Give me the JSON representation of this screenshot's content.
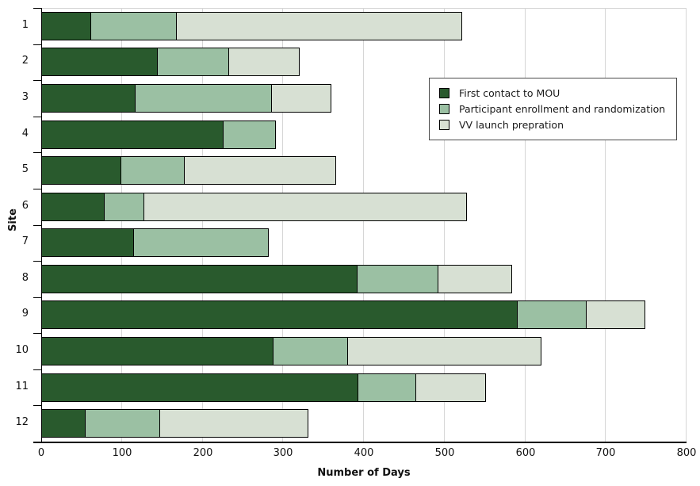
{
  "chart_data": {
    "type": "bar",
    "orientation": "horizontal",
    "stacked": true,
    "xlabel": "Number of Days",
    "ylabel": "Site",
    "xlim": [
      0,
      800
    ],
    "xticks": [
      0,
      100,
      200,
      300,
      400,
      500,
      600,
      700,
      800
    ],
    "grid": "vertical",
    "legend_position": "upper-right-inside",
    "categories": [
      "1",
      "2",
      "3",
      "4",
      "5",
      "6",
      "7",
      "8",
      "9",
      "10",
      "11",
      "12"
    ],
    "series": [
      {
        "name": "First contact to MOU",
        "color": "#295a2d",
        "values": [
          62,
          144,
          117,
          226,
          99,
          79,
          115,
          392,
          591,
          288,
          393,
          55
        ]
      },
      {
        "name": "Participant enrollment and randomization",
        "color": "#9bc0a3",
        "values": [
          106,
          89,
          169,
          65,
          79,
          49,
          167,
          100,
          85,
          92,
          72,
          92
        ]
      },
      {
        "name": "VV launch prepration",
        "color": "#d7e0d3",
        "values": [
          354,
          87,
          74,
          0,
          188,
          400,
          0,
          92,
          73,
          240,
          86,
          184
        ]
      }
    ]
  },
  "colors": {
    "background": "#ffffff",
    "gridline": "#d6d6d6",
    "axis": "#000000",
    "bar_border": "#000000",
    "legend_border": "#4a4a4a"
  }
}
